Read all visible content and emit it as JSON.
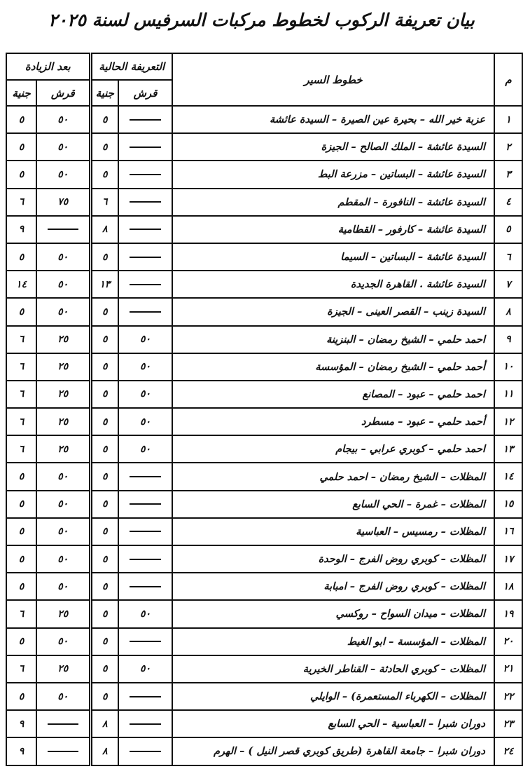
{
  "title": "بيان تعريفة الركوب لخطوط مركبات السرفيس لسنة ٢٠٢٥",
  "headers": {
    "index": "م",
    "route": "خطوط السير",
    "current": "التعريفة الحالية",
    "after": "بعد الزيادة",
    "piaster": "قرش",
    "pound": "جنية"
  },
  "rows": [
    {
      "n": "١",
      "route": "عزبة خير الله – بحيرة عين الصيرة – السيدة عائشة",
      "cur_pt": "",
      "cur_lE": "٥",
      "new_pt": "٥٠",
      "new_lE": "٥"
    },
    {
      "n": "٢",
      "route": "السيدة عائشة – الملك الصالح – الجيزة",
      "cur_pt": "",
      "cur_lE": "٥",
      "new_pt": "٥٠",
      "new_lE": "٥"
    },
    {
      "n": "٣",
      "route": "السيدة عائشة – البساتين – مزرعة البط",
      "cur_pt": "",
      "cur_lE": "٥",
      "new_pt": "٥٠",
      "new_lE": "٥"
    },
    {
      "n": "٤",
      "route": "السيدة عائشة – النافورة – المقطم",
      "cur_pt": "",
      "cur_lE": "٦",
      "new_pt": "٧٥",
      "new_lE": "٦"
    },
    {
      "n": "٥",
      "route": "السيدة عائشة – كارفور – القطامية",
      "cur_pt": "",
      "cur_lE": "٨",
      "new_pt": "",
      "new_lE": "٩"
    },
    {
      "n": "٦",
      "route": "السيدة عائشة – البساتين – السيما",
      "cur_pt": "",
      "cur_lE": "٥",
      "new_pt": "٥٠",
      "new_lE": "٥"
    },
    {
      "n": "٧",
      "route": "السيدة عائشة . القاهرة الجديدة",
      "cur_pt": "",
      "cur_lE": "١٣",
      "new_pt": "٥٠",
      "new_lE": "١٤"
    },
    {
      "n": "٨",
      "route": "السيدة زينب – القصر العينى – الجيزة",
      "cur_pt": "",
      "cur_lE": "٥",
      "new_pt": "٥٠",
      "new_lE": "٥"
    },
    {
      "n": "٩",
      "route": "احمد حلمي – الشيخ رمضان – البنزينة",
      "cur_pt": "٥٠",
      "cur_lE": "٥",
      "new_pt": "٢٥",
      "new_lE": "٦"
    },
    {
      "n": "١٠",
      "route": "أحمد حلمي – الشيخ رمضان – المؤسسة",
      "cur_pt": "٥٠",
      "cur_lE": "٥",
      "new_pt": "٢٥",
      "new_lE": "٦"
    },
    {
      "n": "١١",
      "route": "احمد حلمي – عبود – المصانع",
      "cur_pt": "٥٠",
      "cur_lE": "٥",
      "new_pt": "٢٥",
      "new_lE": "٦"
    },
    {
      "n": "١٢",
      "route": "أحمد حلمي – عبود – مسطرد",
      "cur_pt": "٥٠",
      "cur_lE": "٥",
      "new_pt": "٢٥",
      "new_lE": "٦"
    },
    {
      "n": "١٣",
      "route": "احمد حلمي – كوبري عرابي – بيجام",
      "cur_pt": "٥٠",
      "cur_lE": "٥",
      "new_pt": "٢٥",
      "new_lE": "٦"
    },
    {
      "n": "١٤",
      "route": "المظلات – الشيخ رمضان – احمد حلمي",
      "cur_pt": "",
      "cur_lE": "٥",
      "new_pt": "٥٠",
      "new_lE": "٥"
    },
    {
      "n": "١٥",
      "route": "المظلات – غمرة – الحي السابع",
      "cur_pt": "",
      "cur_lE": "٥",
      "new_pt": "٥٠",
      "new_lE": "٥"
    },
    {
      "n": "١٦",
      "route": "المظلات – رمسيس – العباسية",
      "cur_pt": "",
      "cur_lE": "٥",
      "new_pt": "٥٠",
      "new_lE": "٥"
    },
    {
      "n": "١٧",
      "route": "المظلات – كوبري روض الفرج – الوحدة",
      "cur_pt": "",
      "cur_lE": "٥",
      "new_pt": "٥٠",
      "new_lE": "٥"
    },
    {
      "n": "١٨",
      "route": "المظلات – كوبري روض الفرج – امبابة",
      "cur_pt": "",
      "cur_lE": "٥",
      "new_pt": "٥٠",
      "new_lE": "٥"
    },
    {
      "n": "١٩",
      "route": "المظلات – ميدان السواح – روكسي",
      "cur_pt": "٥٠",
      "cur_lE": "٥",
      "new_pt": "٢٥",
      "new_lE": "٦"
    },
    {
      "n": "٢٠",
      "route": "المظلات – المؤسسة – ابو الغيط",
      "cur_pt": "",
      "cur_lE": "٥",
      "new_pt": "٥٠",
      "new_lE": "٥"
    },
    {
      "n": "٢١",
      "route": "المظلات – كوبري الحادثة – القناطر الخيرية",
      "cur_pt": "٥٠",
      "cur_lE": "٥",
      "new_pt": "٢٥",
      "new_lE": "٦"
    },
    {
      "n": "٢٢",
      "route": "المظلات – الكهرباء المستعمرة) – الوايلي",
      "cur_pt": "",
      "cur_lE": "٥",
      "new_pt": "٥٠",
      "new_lE": "٥"
    },
    {
      "n": "٢٣",
      "route": "دوران شبرا – العباسية – الحي السابع",
      "cur_pt": "",
      "cur_lE": "٨",
      "new_pt": "",
      "new_lE": "٩"
    },
    {
      "n": "٢٤",
      "route": "دوران شبرا – جامعة القاهرة (طريق كوبري قصر النيل ) – الهرم",
      "cur_pt": "",
      "cur_lE": "٨",
      "new_pt": "",
      "new_lE": "٩"
    }
  ]
}
